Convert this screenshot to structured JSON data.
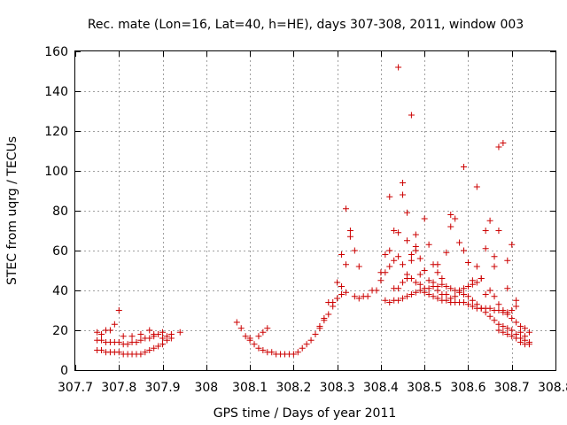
{
  "chart_data": {
    "type": "scatter",
    "title": "Rec. mate (Lon=16, Lat=40, h=HE), days 307-308, 2011, window 003",
    "xlabel": "GPS time / Days of year 2011",
    "ylabel": "STEC from uqrg / TECUs",
    "xlim": [
      307.7,
      308.8
    ],
    "ylim": [
      0,
      160
    ],
    "xticks": [
      307.7,
      307.8,
      307.9,
      308,
      308.1,
      308.2,
      308.3,
      308.4,
      308.5,
      308.6,
      308.7,
      308.8
    ],
    "xtick_labels": [
      "307.7",
      "307.8",
      "307.9",
      "308",
      "308.1",
      "308.2",
      "308.3",
      "308.4",
      "308.5",
      "308.6",
      "308.7",
      "308.8"
    ],
    "yticks": [
      0,
      20,
      40,
      60,
      80,
      100,
      120,
      140,
      160
    ],
    "ytick_labels": [
      "0",
      "20",
      "40",
      "60",
      "80",
      "100",
      "120",
      "140",
      "160"
    ],
    "grid": true,
    "marker": "+",
    "color": "#cc0000",
    "series": [
      {
        "points": [
          [
            307.75,
            10
          ],
          [
            307.76,
            10
          ],
          [
            307.77,
            9
          ],
          [
            307.78,
            9
          ],
          [
            307.79,
            9
          ],
          [
            307.8,
            9
          ],
          [
            307.81,
            8
          ],
          [
            307.82,
            8
          ],
          [
            307.83,
            8
          ],
          [
            307.84,
            8
          ],
          [
            307.85,
            8
          ],
          [
            307.86,
            9
          ],
          [
            307.87,
            10
          ],
          [
            307.88,
            11
          ],
          [
            307.89,
            12
          ],
          [
            307.9,
            13
          ],
          [
            307.91,
            15
          ],
          [
            307.92,
            16
          ],
          [
            307.75,
            15
          ],
          [
            307.76,
            15
          ],
          [
            307.77,
            14
          ],
          [
            307.78,
            14
          ],
          [
            307.79,
            14
          ],
          [
            307.8,
            14
          ],
          [
            307.81,
            13
          ],
          [
            307.82,
            13
          ],
          [
            307.83,
            14
          ],
          [
            307.84,
            14
          ],
          [
            307.85,
            15
          ],
          [
            307.86,
            16
          ],
          [
            307.87,
            16
          ],
          [
            307.88,
            17
          ],
          [
            307.89,
            18
          ],
          [
            307.9,
            19
          ],
          [
            307.75,
            19
          ],
          [
            307.76,
            18
          ],
          [
            307.77,
            20
          ],
          [
            307.78,
            20
          ],
          [
            307.79,
            23
          ],
          [
            307.8,
            30
          ],
          [
            307.81,
            17
          ],
          [
            307.83,
            17
          ],
          [
            307.85,
            18
          ],
          [
            307.87,
            20
          ],
          [
            307.88,
            18
          ],
          [
            307.9,
            16
          ],
          [
            307.91,
            17
          ],
          [
            307.92,
            18
          ],
          [
            307.94,
            19
          ],
          [
            308.07,
            24
          ],
          [
            308.08,
            21
          ],
          [
            308.09,
            17
          ],
          [
            308.1,
            15
          ],
          [
            308.11,
            13
          ],
          [
            308.12,
            11
          ],
          [
            308.13,
            10
          ],
          [
            308.14,
            9
          ],
          [
            308.15,
            9
          ],
          [
            308.16,
            8
          ],
          [
            308.17,
            8
          ],
          [
            308.18,
            8
          ],
          [
            308.19,
            8
          ],
          [
            308.2,
            8
          ],
          [
            308.21,
            9
          ],
          [
            308.22,
            11
          ],
          [
            308.23,
            13
          ],
          [
            308.24,
            15
          ],
          [
            308.25,
            18
          ],
          [
            308.26,
            21
          ],
          [
            308.27,
            25
          ],
          [
            308.28,
            28
          ],
          [
            308.29,
            32
          ],
          [
            308.3,
            36
          ],
          [
            308.31,
            38
          ],
          [
            308.32,
            39
          ],
          [
            308.1,
            16
          ],
          [
            308.12,
            17
          ],
          [
            308.13,
            19
          ],
          [
            308.14,
            21
          ],
          [
            308.26,
            22
          ],
          [
            308.27,
            26
          ],
          [
            308.28,
            34
          ],
          [
            308.29,
            34
          ],
          [
            308.3,
            44
          ],
          [
            308.31,
            42
          ],
          [
            308.31,
            58
          ],
          [
            308.32,
            53
          ],
          [
            308.32,
            81
          ],
          [
            308.33,
            67
          ],
          [
            308.33,
            70
          ],
          [
            308.34,
            60
          ],
          [
            308.35,
            52
          ],
          [
            308.34,
            37
          ],
          [
            308.35,
            36
          ],
          [
            308.36,
            37
          ],
          [
            308.37,
            37
          ],
          [
            308.38,
            40
          ],
          [
            308.39,
            40
          ],
          [
            308.4,
            45
          ],
          [
            308.41,
            49
          ],
          [
            308.41,
            35
          ],
          [
            308.42,
            34
          ],
          [
            308.43,
            35
          ],
          [
            308.44,
            35
          ],
          [
            308.45,
            36
          ],
          [
            308.46,
            37
          ],
          [
            308.47,
            38
          ],
          [
            308.48,
            39
          ],
          [
            308.49,
            40
          ],
          [
            308.5,
            41
          ],
          [
            308.51,
            41
          ],
          [
            308.52,
            42
          ],
          [
            308.53,
            42
          ],
          [
            308.54,
            43
          ],
          [
            308.55,
            42
          ],
          [
            308.56,
            41
          ],
          [
            308.57,
            40
          ],
          [
            308.58,
            39
          ],
          [
            308.59,
            38
          ],
          [
            308.6,
            37
          ],
          [
            308.61,
            35
          ],
          [
            308.62,
            33
          ],
          [
            308.63,
            31
          ],
          [
            308.64,
            29
          ],
          [
            308.65,
            27
          ],
          [
            308.66,
            25
          ],
          [
            308.67,
            23
          ],
          [
            308.68,
            22
          ],
          [
            308.69,
            21
          ],
          [
            308.7,
            20
          ],
          [
            308.71,
            18
          ],
          [
            308.72,
            16
          ],
          [
            308.73,
            15
          ],
          [
            308.42,
            87
          ],
          [
            308.42,
            60
          ],
          [
            308.43,
            55
          ],
          [
            308.43,
            70
          ],
          [
            308.44,
            69
          ],
          [
            308.44,
            152
          ],
          [
            308.45,
            88
          ],
          [
            308.45,
            94
          ],
          [
            308.46,
            65
          ],
          [
            308.46,
            79
          ],
          [
            308.47,
            128
          ],
          [
            308.47,
            55
          ],
          [
            308.48,
            68
          ],
          [
            308.48,
            62
          ],
          [
            308.49,
            48
          ],
          [
            308.5,
            76
          ],
          [
            308.51,
            63
          ],
          [
            308.52,
            53
          ],
          [
            308.53,
            49
          ],
          [
            308.53,
            53
          ],
          [
            308.54,
            46
          ],
          [
            308.55,
            59
          ],
          [
            308.56,
            78
          ],
          [
            308.56,
            72
          ],
          [
            308.57,
            76
          ],
          [
            308.58,
            64
          ],
          [
            308.59,
            60
          ],
          [
            308.59,
            102
          ],
          [
            308.6,
            54
          ],
          [
            308.61,
            45
          ],
          [
            308.62,
            92
          ],
          [
            308.62,
            52
          ],
          [
            308.63,
            46
          ],
          [
            308.64,
            70
          ],
          [
            308.64,
            61
          ],
          [
            308.65,
            75
          ],
          [
            308.66,
            57
          ],
          [
            308.66,
            52
          ],
          [
            308.67,
            112
          ],
          [
            308.67,
            70
          ],
          [
            308.68,
            114
          ],
          [
            308.69,
            55
          ],
          [
            308.69,
            41
          ],
          [
            308.7,
            63
          ],
          [
            308.44,
            57
          ],
          [
            308.45,
            53
          ],
          [
            308.46,
            48
          ],
          [
            308.47,
            46
          ],
          [
            308.48,
            44
          ],
          [
            308.49,
            43
          ],
          [
            308.5,
            39
          ],
          [
            308.51,
            38
          ],
          [
            308.52,
            37
          ],
          [
            308.53,
            36
          ],
          [
            308.54,
            35
          ],
          [
            308.55,
            35
          ],
          [
            308.56,
            34
          ],
          [
            308.57,
            34
          ],
          [
            308.58,
            34
          ],
          [
            308.59,
            34
          ],
          [
            308.6,
            33
          ],
          [
            308.61,
            32
          ],
          [
            308.62,
            31
          ],
          [
            308.63,
            31
          ],
          [
            308.64,
            31
          ],
          [
            308.65,
            31
          ],
          [
            308.66,
            30
          ],
          [
            308.67,
            30
          ],
          [
            308.68,
            29
          ],
          [
            308.69,
            29
          ],
          [
            308.7,
            30
          ],
          [
            308.71,
            32
          ],
          [
            308.72,
            22
          ],
          [
            308.73,
            21
          ],
          [
            308.4,
            49
          ],
          [
            308.41,
            58
          ],
          [
            308.42,
            52
          ],
          [
            308.43,
            41
          ],
          [
            308.44,
            41
          ],
          [
            308.45,
            44
          ],
          [
            308.46,
            46
          ],
          [
            308.47,
            58
          ],
          [
            308.48,
            60
          ],
          [
            308.49,
            56
          ],
          [
            308.5,
            50
          ],
          [
            308.51,
            45
          ],
          [
            308.52,
            44
          ],
          [
            308.53,
            40
          ],
          [
            308.54,
            38
          ],
          [
            308.55,
            38
          ],
          [
            308.56,
            36
          ],
          [
            308.57,
            37
          ],
          [
            308.58,
            40
          ],
          [
            308.59,
            41
          ],
          [
            308.6,
            42
          ],
          [
            308.61,
            43
          ],
          [
            308.62,
            44
          ],
          [
            308.63,
            46
          ],
          [
            308.64,
            38
          ],
          [
            308.65,
            40
          ],
          [
            308.66,
            37
          ],
          [
            308.67,
            33
          ],
          [
            308.68,
            30
          ],
          [
            308.69,
            28
          ],
          [
            308.7,
            26
          ],
          [
            308.71,
            24
          ],
          [
            308.72,
            19
          ],
          [
            308.73,
            17
          ],
          [
            308.74,
            14
          ],
          [
            308.67,
            20
          ],
          [
            308.68,
            19
          ],
          [
            308.69,
            18
          ],
          [
            308.7,
            17
          ],
          [
            308.71,
            16
          ],
          [
            308.71,
            35
          ],
          [
            308.72,
            14
          ],
          [
            308.73,
            13
          ],
          [
            308.74,
            13
          ],
          [
            308.74,
            19
          ]
        ]
      }
    ]
  }
}
